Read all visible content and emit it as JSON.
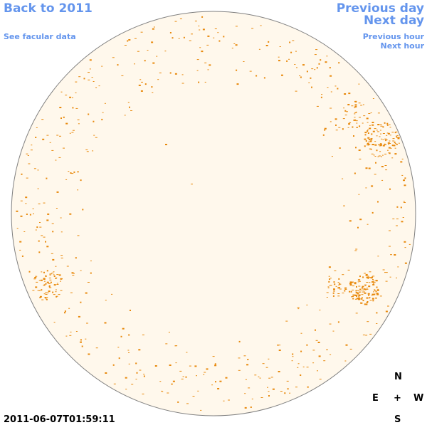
{
  "nav": {
    "back_year": "Back to 2011",
    "see_facular": "See facular data",
    "previous_day": "Previous day",
    "next_day": "Next day",
    "previous_hour": "Previous hour",
    "next_hour": "Next hour"
  },
  "compass": {
    "north": "N",
    "east": "E",
    "center": "+",
    "west": "W",
    "south": "S"
  },
  "timestamp": "2011-06-07T01:59:11",
  "colors": {
    "link": "#6495ED",
    "disk_fill": "#FFF8EC",
    "disk_outline": "#808080",
    "plage": "#E8890C"
  }
}
